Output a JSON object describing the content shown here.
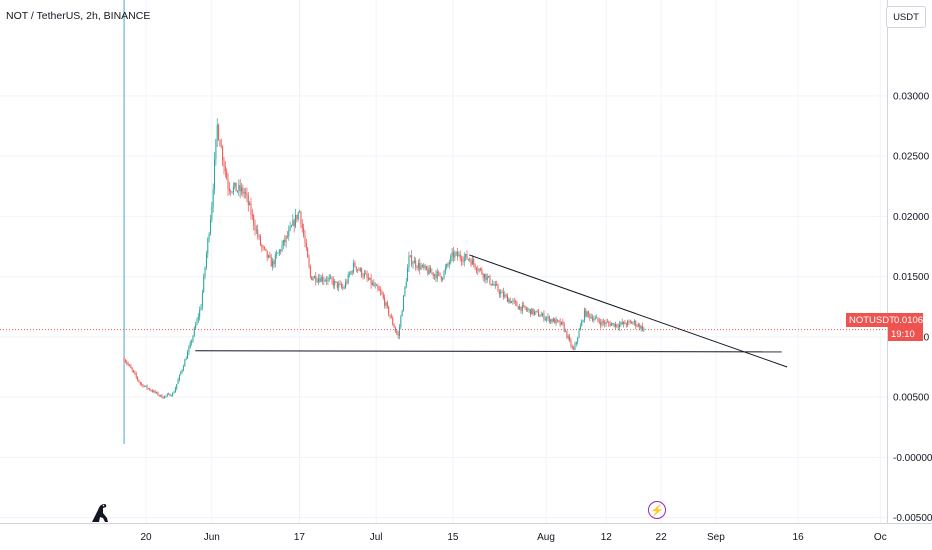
{
  "header": {
    "title": "NOT / TetherUS, 2h, BINANCE"
  },
  "axis": {
    "currency": "USDT"
  },
  "price_tag": {
    "symbol": "NOTUSDT",
    "price": "0.01060",
    "countdown": "19:10"
  },
  "icons": {
    "logo": "tradingview-dino-icon",
    "event": "lightning-icon"
  },
  "colors": {
    "up": "#26a69a",
    "down": "#ef5350",
    "grid": "#f0f3fa",
    "trendline": "#131722",
    "price_line": "#ef5350",
    "vertical_marker": "#4fa3d8"
  },
  "chart_data": {
    "type": "candlestick",
    "title": "NOT / TetherUS, 2h, BINANCE",
    "xlabel": "",
    "ylabel": "",
    "x_tick_labels": [
      "20",
      "Jun",
      "17",
      "Jul",
      "15",
      "Aug",
      "12",
      "22",
      "Sep",
      "16",
      "Oc"
    ],
    "y_tick_labels": [
      "0.03000",
      "0.02500",
      "0.02000",
      "0.01500",
      "0.01000",
      "0.00500",
      "-0.00000",
      "-0.00500"
    ],
    "ylim": [
      -0.0052,
      0.0368
    ],
    "grid": true,
    "last_price": 0.0106,
    "price_path": [
      {
        "date": "2024-05-16",
        "price": 0.0082
      },
      {
        "date": "2024-05-19",
        "price": 0.0061
      },
      {
        "date": "2024-05-23",
        "price": 0.005
      },
      {
        "date": "2024-05-25",
        "price": 0.0053
      },
      {
        "date": "2024-05-28",
        "price": 0.0092
      },
      {
        "date": "2024-05-30",
        "price": 0.0125
      },
      {
        "date": "2024-06-01",
        "price": 0.021
      },
      {
        "date": "2024-06-02",
        "price": 0.0275
      },
      {
        "date": "2024-06-04",
        "price": 0.0225
      },
      {
        "date": "2024-06-07",
        "price": 0.022
      },
      {
        "date": "2024-06-10",
        "price": 0.0175
      },
      {
        "date": "2024-06-12",
        "price": 0.016
      },
      {
        "date": "2024-06-15",
        "price": 0.0185
      },
      {
        "date": "2024-06-17",
        "price": 0.0205
      },
      {
        "date": "2024-06-19",
        "price": 0.015
      },
      {
        "date": "2024-06-22",
        "price": 0.0148
      },
      {
        "date": "2024-06-25",
        "price": 0.014
      },
      {
        "date": "2024-06-27",
        "price": 0.016
      },
      {
        "date": "2024-06-29",
        "price": 0.015
      },
      {
        "date": "2024-07-02",
        "price": 0.0135
      },
      {
        "date": "2024-07-05",
        "price": 0.01
      },
      {
        "date": "2024-07-07",
        "price": 0.0165
      },
      {
        "date": "2024-07-10",
        "price": 0.0155
      },
      {
        "date": "2024-07-13",
        "price": 0.015
      },
      {
        "date": "2024-07-15",
        "price": 0.0168
      },
      {
        "date": "2024-07-18",
        "price": 0.0165
      },
      {
        "date": "2024-07-21",
        "price": 0.015
      },
      {
        "date": "2024-07-24",
        "price": 0.0135
      },
      {
        "date": "2024-07-27",
        "price": 0.0125
      },
      {
        "date": "2024-07-31",
        "price": 0.0118
      },
      {
        "date": "2024-08-04",
        "price": 0.011
      },
      {
        "date": "2024-08-06",
        "price": 0.0088
      },
      {
        "date": "2024-08-08",
        "price": 0.012
      },
      {
        "date": "2024-08-11",
        "price": 0.0112
      },
      {
        "date": "2024-08-14",
        "price": 0.011
      },
      {
        "date": "2024-08-17",
        "price": 0.0112
      },
      {
        "date": "2024-08-19",
        "price": 0.0106
      }
    ],
    "drawings": [
      {
        "kind": "horizontal-support",
        "from": {
          "date": "2024-05-29",
          "price": 0.00885
        },
        "to": {
          "date": "2024-09-13",
          "price": 0.00875
        }
      },
      {
        "kind": "descending-trendline",
        "from": {
          "date": "2024-07-18",
          "price": 0.0168
        },
        "to": {
          "date": "2024-09-14",
          "price": 0.0075
        }
      }
    ],
    "vertical_marker_date": "2024-05-16"
  }
}
